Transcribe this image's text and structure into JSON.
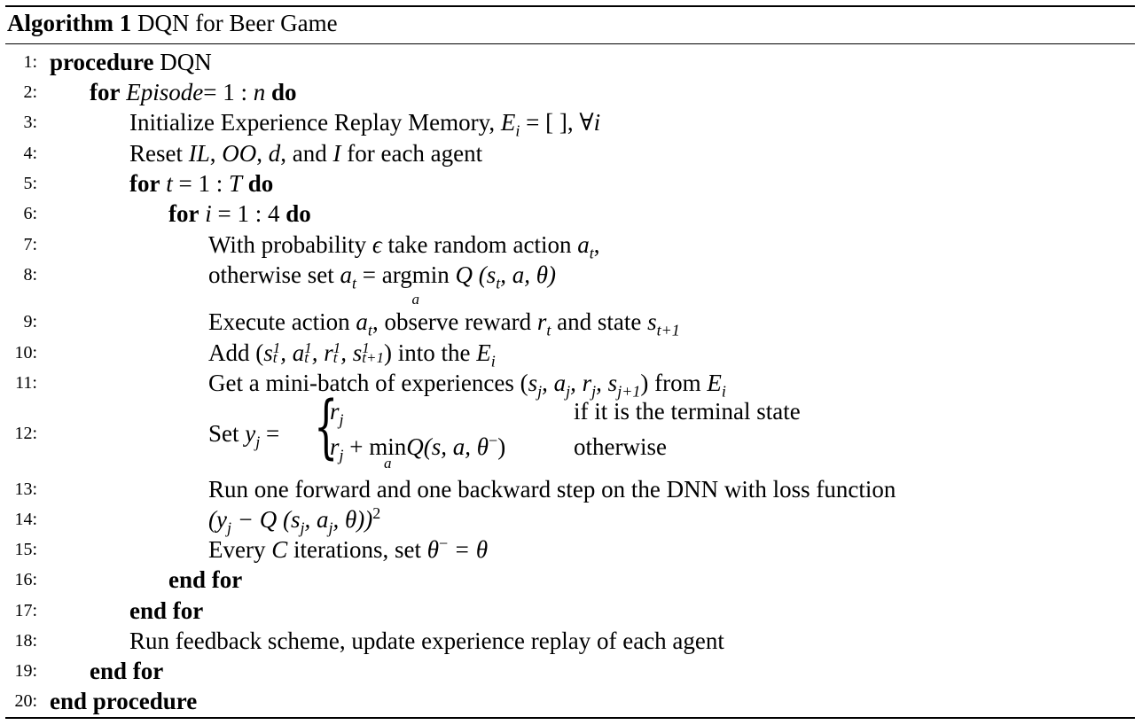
{
  "caption": {
    "label": "Algorithm 1",
    "title": "DQN for Beer Game"
  },
  "lines": [
    {
      "n": "1:"
    },
    {
      "n": "2:"
    },
    {
      "n": "3:"
    },
    {
      "n": "4:"
    },
    {
      "n": "5:"
    },
    {
      "n": "6:"
    },
    {
      "n": "7:"
    },
    {
      "n": "8:"
    },
    {
      "n": "9:"
    },
    {
      "n": "10:"
    },
    {
      "n": "11:"
    },
    {
      "n": "12:"
    },
    {
      "n": "13:"
    },
    {
      "n": "14:"
    },
    {
      "n": "15:"
    },
    {
      "n": "16:"
    },
    {
      "n": "17:"
    },
    {
      "n": "18:"
    },
    {
      "n": "19:"
    },
    {
      "n": "20:"
    }
  ],
  "kw": {
    "procedure": "procedure",
    "for": "for",
    "do": "do",
    "end_for": "end for",
    "end_procedure": "end procedure"
  },
  "text": {
    "l1_name": "DQN",
    "l2_var": "Episode",
    "l2_range": "= 1 : ",
    "l2_n": "n",
    "l3": "Initialize Experience Replay Memory, ",
    "l3_E": "E",
    "l3_i": "i",
    "l3_rest": " = [ ],  ∀",
    "l3_i2": "i",
    "l4_a": "Reset ",
    "l4_IL": "IL",
    "l4_c1": ", ",
    "l4_OO": "OO",
    "l4_c2": ", ",
    "l4_d": "d",
    "l4_c3": ", and ",
    "l4_I": "I",
    "l4_b": " for each agent",
    "l5_t": "t",
    "l5_range": " = 1 : ",
    "l5_T": "T",
    "l6_i": "i",
    "l6_range": " = 1 : 4",
    "l7_a": "With probability ",
    "l7_eps": "ϵ",
    "l7_b": " take random action ",
    "l7_at": "a",
    "l7_t": "t",
    "l7_c": ",",
    "l8_a": "otherwise set ",
    "l8_at": "a",
    "l8_t": "t",
    "l8_eq": " = ",
    "l8_argmin": "argmin",
    "l8_sub": "a",
    "l8_Q": " Q",
    "l8_args": " (s",
    "l8_args_t": "t",
    "l8_args_rest": ", a, θ)",
    "l9_a": "Execute action ",
    "l9_at": "a",
    "l9_t": "t",
    "l9_b": ", observe reward ",
    "l9_r": "r",
    "l9_rt": "t",
    "l9_c": " and state ",
    "l9_s": "s",
    "l9_st": "t+1",
    "l10_a": "Add (",
    "l10_expr": "s",
    "l10_rest": " into the ",
    "l10_E": "E",
    "l10_i": "i",
    "l11_a": "Get a mini-batch of experiences (",
    "l11_b": ") from ",
    "l11_E": "E",
    "l11_i": "i",
    "l12_set": "Set ",
    "l12_y": "y",
    "l12_j": "j",
    "l12_eq": " =",
    "l12_case1": "r",
    "l12_case1_j": "j",
    "l12_cond1": "if it is the terminal state",
    "l12_case2_r": "r",
    "l12_case2_j": "j",
    "l12_case2_plus": " + ",
    "l12_min": "min",
    "l12_min_sub": "a",
    "l12_Q": "Q",
    "l12_args": "(s, a, θ",
    "l12_minus": "−",
    "l12_close": ")",
    "l12_cond2": "otherwise",
    "l13": "Run one forward and one backward step on the DNN with loss function",
    "l14": "(y",
    "l14_j": "j",
    "l14_b": " − Q (s",
    "l14_c": ", a",
    "l14_d": ", θ))",
    "l14_sq": "2",
    "l15_a": "Every ",
    "l15_C": "C",
    "l15_b": " iterations, set ",
    "l15_theta": "θ",
    "l15_minus": "−",
    "l15_c": " = θ",
    "l18": "Run feedback scheme, update experience replay of each agent"
  }
}
